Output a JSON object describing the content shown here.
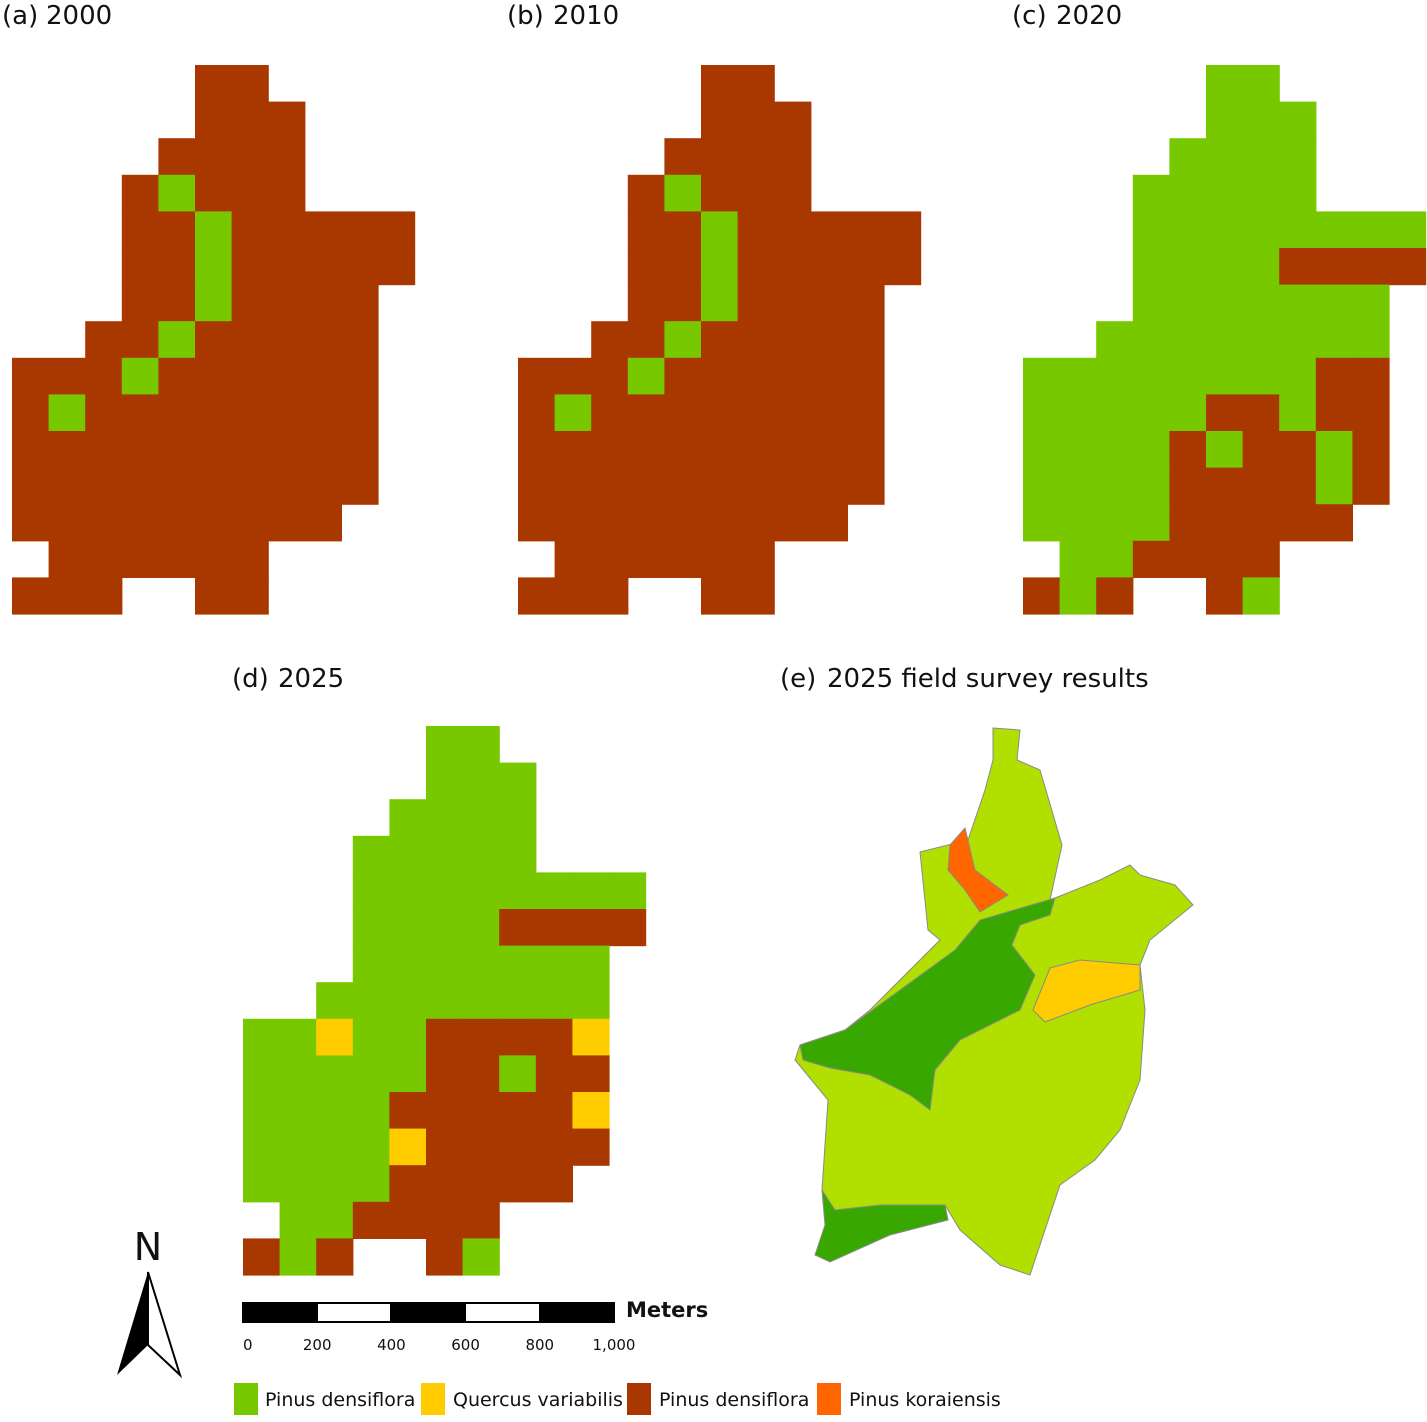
{
  "panels": [
    {
      "letter": "(a)",
      "title": "2000"
    },
    {
      "letter": "(b)",
      "title": "2010"
    },
    {
      "letter": "(c)",
      "title": "2020"
    },
    {
      "letter": "(d)",
      "title": "2025"
    },
    {
      "letter": "(e)",
      "title": "2025 field survey results"
    }
  ],
  "north": "N",
  "scale_bar": {
    "unit": "Meters",
    "labels": [
      "0",
      "200",
      "400",
      "600",
      "800",
      "1,000"
    ]
  },
  "legend": [
    "Pinus densiflora",
    "Quercus variabilis",
    "Pinus densiflora",
    "Pinus koraiensis"
  ]
}
